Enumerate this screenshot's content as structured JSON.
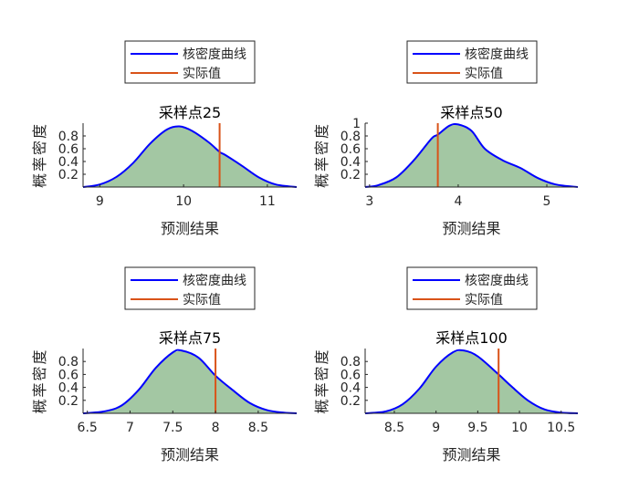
{
  "legend": {
    "kde_label": "核密度曲线",
    "actual_label": "实际值"
  },
  "colors": {
    "kde_line": "#0000ff",
    "kde_fill": "#a3c7a3",
    "actual_line": "#d95319",
    "axis": "#262626"
  },
  "chart_data": [
    {
      "type": "area",
      "title": "采样点25",
      "xlabel": "预测结果",
      "ylabel": "概率密度",
      "xlim": [
        8.8,
        11.35
      ],
      "ylim": [
        0,
        1.0
      ],
      "xticks": [
        9,
        10,
        11
      ],
      "yticks": [
        0.2,
        0.4,
        0.6,
        0.8
      ],
      "actual": 10.43,
      "x": [
        8.8,
        9.0,
        9.2,
        9.4,
        9.6,
        9.8,
        9.95,
        10.1,
        10.3,
        10.43,
        10.5,
        10.7,
        10.9,
        11.1,
        11.35
      ],
      "y": [
        0.0,
        0.04,
        0.16,
        0.38,
        0.68,
        0.9,
        0.95,
        0.88,
        0.7,
        0.55,
        0.5,
        0.33,
        0.15,
        0.04,
        0.0
      ]
    },
    {
      "type": "area",
      "title": "采样点50",
      "xlabel": "预测结果",
      "ylabel": "概率密度",
      "xlim": [
        2.95,
        5.35
      ],
      "ylim": [
        0,
        1.0
      ],
      "xticks": [
        3,
        4,
        5
      ],
      "yticks": [
        0.2,
        0.4,
        0.6,
        0.8,
        1
      ],
      "actual": 3.77,
      "x": [
        2.95,
        3.1,
        3.3,
        3.5,
        3.7,
        3.77,
        3.9,
        4.0,
        4.15,
        4.3,
        4.5,
        4.7,
        4.9,
        5.1,
        5.35
      ],
      "y": [
        0.0,
        0.03,
        0.15,
        0.42,
        0.76,
        0.82,
        0.96,
        0.98,
        0.88,
        0.6,
        0.42,
        0.3,
        0.14,
        0.04,
        0.0
      ]
    },
    {
      "type": "area",
      "title": "采样点75",
      "xlabel": "预测结果",
      "ylabel": "概率密度",
      "xlim": [
        6.45,
        8.95
      ],
      "ylim": [
        0,
        1.0
      ],
      "xticks": [
        6.5,
        7,
        7.5,
        8,
        8.5
      ],
      "yticks": [
        0.2,
        0.4,
        0.6,
        0.8
      ],
      "actual": 8.0,
      "x": [
        6.45,
        6.7,
        6.9,
        7.1,
        7.3,
        7.5,
        7.6,
        7.8,
        8.0,
        8.2,
        8.4,
        8.6,
        8.8,
        8.95
      ],
      "y": [
        0.0,
        0.03,
        0.12,
        0.36,
        0.7,
        0.94,
        0.97,
        0.86,
        0.58,
        0.36,
        0.16,
        0.05,
        0.01,
        0.0
      ]
    },
    {
      "type": "area",
      "title": "采样点100",
      "xlabel": "预测结果",
      "ylabel": "概率密度",
      "xlim": [
        8.15,
        10.7
      ],
      "ylim": [
        0,
        1.0
      ],
      "xticks": [
        8.5,
        9,
        9.5,
        10,
        10.5
      ],
      "yticks": [
        0.2,
        0.4,
        0.6,
        0.8
      ],
      "actual": 9.75,
      "x": [
        8.15,
        8.4,
        8.6,
        8.8,
        9.0,
        9.2,
        9.33,
        9.5,
        9.75,
        9.9,
        10.1,
        10.3,
        10.5,
        10.7
      ],
      "y": [
        0.0,
        0.03,
        0.14,
        0.38,
        0.72,
        0.94,
        0.97,
        0.88,
        0.6,
        0.42,
        0.2,
        0.06,
        0.01,
        0.0
      ]
    }
  ]
}
